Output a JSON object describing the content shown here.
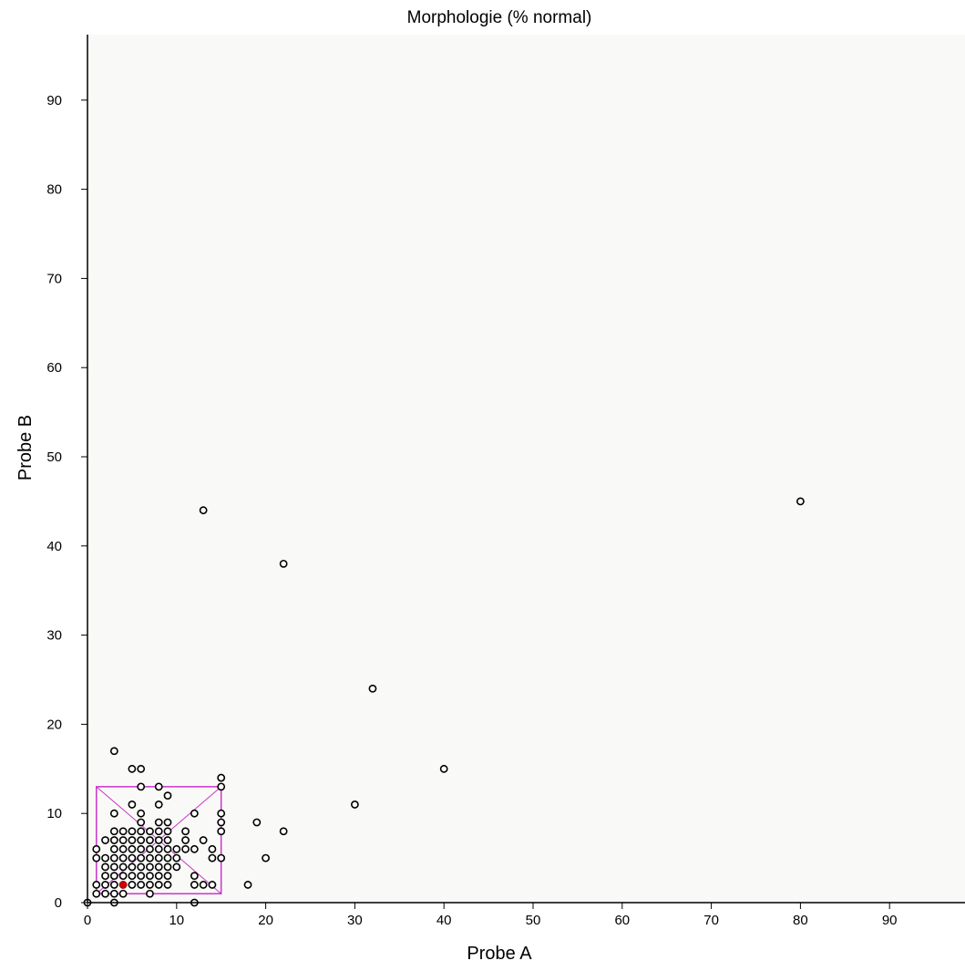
{
  "chart_data": {
    "type": "scatter",
    "title": "Morphologie (% normal)",
    "xlabel": "Probe A",
    "ylabel": "Probe B",
    "xlim": [
      0,
      98
    ],
    "ylim": [
      0,
      98
    ],
    "xticks": [
      0,
      10,
      20,
      30,
      40,
      50,
      60,
      70,
      80,
      90
    ],
    "yticks": [
      0,
      10,
      20,
      30,
      40,
      50,
      60,
      70,
      80,
      90
    ],
    "grid": false,
    "colors": {
      "background": "#f9faf7",
      "points": "#000000",
      "highlight": "#cc0000",
      "box": "#cc33cc"
    },
    "highlight_point": [
      4,
      2
    ],
    "box": {
      "x": [
        1,
        15
      ],
      "y": [
        1,
        13
      ]
    },
    "points": [
      [
        0,
        0
      ],
      [
        1,
        1
      ],
      [
        1,
        2
      ],
      [
        1,
        5
      ],
      [
        1,
        6
      ],
      [
        2,
        1
      ],
      [
        2,
        2
      ],
      [
        2,
        3
      ],
      [
        2,
        4
      ],
      [
        2,
        5
      ],
      [
        2,
        7
      ],
      [
        3,
        0
      ],
      [
        3,
        1
      ],
      [
        3,
        2
      ],
      [
        3,
        3
      ],
      [
        3,
        4
      ],
      [
        3,
        5
      ],
      [
        3,
        6
      ],
      [
        3,
        7
      ],
      [
        3,
        8
      ],
      [
        3,
        10
      ],
      [
        3,
        17
      ],
      [
        4,
        1
      ],
      [
        4,
        2
      ],
      [
        4,
        3
      ],
      [
        4,
        4
      ],
      [
        4,
        5
      ],
      [
        4,
        6
      ],
      [
        4,
        7
      ],
      [
        4,
        8
      ],
      [
        5,
        2
      ],
      [
        5,
        3
      ],
      [
        5,
        4
      ],
      [
        5,
        5
      ],
      [
        5,
        6
      ],
      [
        5,
        7
      ],
      [
        5,
        8
      ],
      [
        5,
        11
      ],
      [
        5,
        15
      ],
      [
        6,
        2
      ],
      [
        6,
        3
      ],
      [
        6,
        4
      ],
      [
        6,
        5
      ],
      [
        6,
        6
      ],
      [
        6,
        7
      ],
      [
        6,
        8
      ],
      [
        6,
        9
      ],
      [
        6,
        10
      ],
      [
        6,
        13
      ],
      [
        6,
        15
      ],
      [
        7,
        1
      ],
      [
        7,
        2
      ],
      [
        7,
        3
      ],
      [
        7,
        4
      ],
      [
        7,
        5
      ],
      [
        7,
        6
      ],
      [
        7,
        7
      ],
      [
        7,
        8
      ],
      [
        8,
        2
      ],
      [
        8,
        3
      ],
      [
        8,
        4
      ],
      [
        8,
        5
      ],
      [
        8,
        6
      ],
      [
        8,
        7
      ],
      [
        8,
        8
      ],
      [
        8,
        9
      ],
      [
        8,
        11
      ],
      [
        8,
        13
      ],
      [
        9,
        2
      ],
      [
        9,
        3
      ],
      [
        9,
        4
      ],
      [
        9,
        5
      ],
      [
        9,
        6
      ],
      [
        9,
        7
      ],
      [
        9,
        8
      ],
      [
        9,
        9
      ],
      [
        9,
        12
      ],
      [
        10,
        4
      ],
      [
        10,
        5
      ],
      [
        10,
        6
      ],
      [
        11,
        6
      ],
      [
        11,
        7
      ],
      [
        11,
        8
      ],
      [
        12,
        0
      ],
      [
        12,
        2
      ],
      [
        12,
        3
      ],
      [
        12,
        6
      ],
      [
        12,
        10
      ],
      [
        13,
        2
      ],
      [
        13,
        7
      ],
      [
        13,
        44
      ],
      [
        14,
        2
      ],
      [
        14,
        5
      ],
      [
        14,
        6
      ],
      [
        15,
        5
      ],
      [
        15,
        8
      ],
      [
        15,
        9
      ],
      [
        15,
        10
      ],
      [
        15,
        13
      ],
      [
        15,
        14
      ],
      [
        18,
        2
      ],
      [
        19,
        9
      ],
      [
        20,
        5
      ],
      [
        22,
        8
      ],
      [
        22,
        38
      ],
      [
        30,
        11
      ],
      [
        32,
        24
      ],
      [
        40,
        15
      ],
      [
        80,
        45
      ]
    ]
  }
}
